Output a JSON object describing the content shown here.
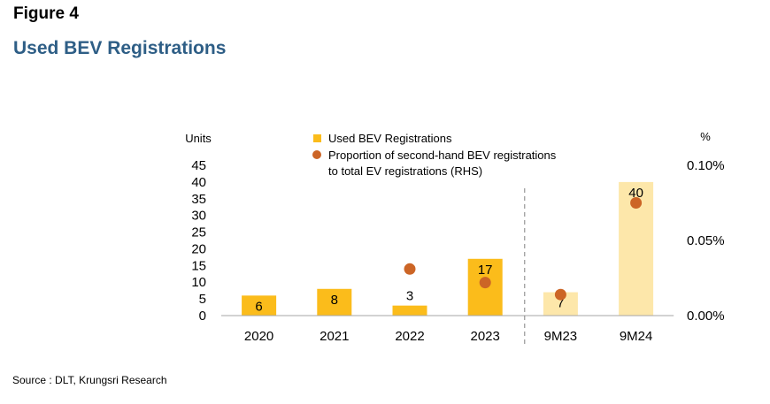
{
  "figure_label": "Figure 4",
  "title": "Used BEV Registrations",
  "source": "Source : DLT, Krungsri Research",
  "chart_data": {
    "type": "bar",
    "categories": [
      "2020",
      "2021",
      "2022",
      "2023",
      "9M23",
      "9M24"
    ],
    "series": [
      {
        "name": "Used BEV Registrations",
        "type": "bar",
        "axis": "left",
        "values": [
          6,
          8,
          3,
          17,
          7,
          40
        ],
        "data_labels": [
          "6",
          "8",
          "3",
          "17",
          "7",
          "40"
        ],
        "colors": [
          "#fbbc1b",
          "#fbbc1b",
          "#fbbc1b",
          "#fbbc1b",
          "#fde7aa",
          "#fde7aa"
        ]
      },
      {
        "name": "Proportion of second-hand BEV registrations to total EV registrations (RHS)",
        "legend_lines": [
          "Proportion of second-hand BEV registrations",
          "to total EV registrations (RHS)"
        ],
        "type": "scatter",
        "axis": "right",
        "values": [
          null,
          null,
          0.031,
          0.022,
          0.014,
          0.075
        ],
        "color": "#cc6526"
      }
    ],
    "ylabel": "Units",
    "y2label": "%",
    "ylim": [
      0,
      45
    ],
    "yticks": [
      "0",
      "5",
      "10",
      "15",
      "20",
      "25",
      "30",
      "35",
      "40",
      "45"
    ],
    "y2lim": [
      0,
      0.1
    ],
    "y2ticks": [
      "0.00%",
      "0.05%",
      "0.10%"
    ],
    "y2tick_values": [
      0,
      0.05,
      0.1
    ],
    "grid": false,
    "legend": "top-center",
    "divider_after_index": 3
  }
}
